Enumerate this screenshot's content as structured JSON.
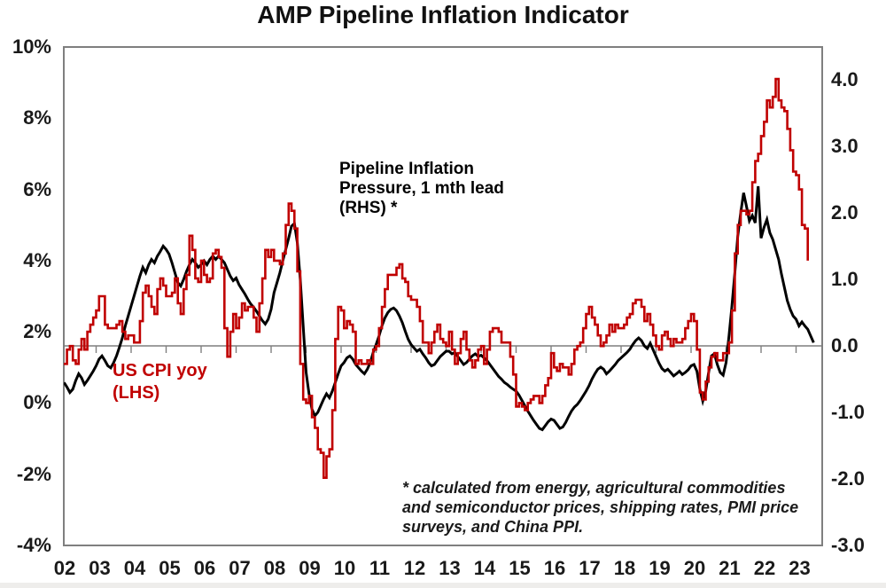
{
  "chart": {
    "title": "AMP Pipeline Inflation Indicator",
    "annotations": {
      "pipeline_label_line1": "Pipeline Inflation",
      "pipeline_label_line2": "Pressure, 1 mth lead",
      "pipeline_label_line3": "(RHS) *",
      "cpi_label_line1": "US CPI yoy",
      "cpi_label_line2": "(LHS)",
      "footnote_line1": "* calculated from energy, agricultural commodities",
      "footnote_line2": "and semiconductor prices, shipping rates, PMI price",
      "footnote_line3": "surveys, and China PPI."
    },
    "colors": {
      "cpi_red": "#c00000",
      "pipeline_black": "#000000",
      "axis_gray": "#7f7f7f"
    }
  },
  "chart_data": {
    "type": "line",
    "title": "AMP Pipeline Inflation Indicator",
    "legend_position": "annotations-inside-plot",
    "grid": false,
    "left_axis": {
      "tick_labels": [
        "10%",
        "8%",
        "6%",
        "4%",
        "2%",
        "0%",
        "-2%",
        "-4%"
      ],
      "tick_values": [
        10,
        8,
        6,
        4,
        2,
        0,
        -2,
        -4
      ],
      "range": [
        -4,
        10
      ],
      "unit": "percent"
    },
    "right_axis": {
      "tick_labels": [
        "4.0",
        "3.0",
        "2.0",
        "1.0",
        "0.0",
        "-1.0",
        "-2.0",
        "-3.0"
      ],
      "tick_values": [
        4,
        3,
        2,
        1,
        0,
        -1,
        -2,
        -3
      ],
      "range": [
        -3,
        4.49
      ],
      "zero_line": true
    },
    "x_axis": {
      "tick_labels": [
        "02",
        "03",
        "04",
        "05",
        "06",
        "07",
        "08",
        "09",
        "10",
        "11",
        "12",
        "13",
        "14",
        "15",
        "16",
        "17",
        "18",
        "19",
        "20",
        "21",
        "22",
        "23"
      ],
      "tick_years": [
        2002,
        2003,
        2004,
        2005,
        2006,
        2007,
        2008,
        2009,
        2010,
        2011,
        2012,
        2013,
        2014,
        2015,
        2016,
        2017,
        2018,
        2019,
        2020,
        2021,
        2022,
        2023
      ],
      "range_years": [
        2001.92,
        2023.75
      ]
    },
    "series": [
      {
        "name": "Pipeline Inflation Pressure, 1 mth lead (RHS)",
        "axis": "right",
        "color": "#000000",
        "line_width": 3,
        "interpolation": "linear",
        "start_year": 2002,
        "start_month": 1,
        "lead_months": 1,
        "values": [
          -0.55,
          -0.62,
          -0.7,
          -0.65,
          -0.52,
          -0.42,
          -0.48,
          -0.58,
          -0.52,
          -0.45,
          -0.38,
          -0.3,
          -0.2,
          -0.15,
          -0.22,
          -0.3,
          -0.33,
          -0.25,
          -0.15,
          -0.02,
          0.12,
          0.3,
          0.45,
          0.6,
          0.75,
          0.9,
          1.05,
          1.18,
          1.1,
          1.22,
          1.3,
          1.25,
          1.35,
          1.42,
          1.5,
          1.45,
          1.38,
          1.25,
          1.1,
          0.95,
          0.9,
          1.0,
          1.12,
          1.22,
          1.3,
          1.25,
          1.18,
          1.22,
          1.28,
          1.22,
          1.3,
          1.35,
          1.3,
          1.35,
          1.3,
          1.25,
          1.15,
          1.05,
          0.98,
          1.02,
          0.92,
          0.85,
          0.78,
          0.7,
          0.63,
          0.58,
          0.52,
          0.45,
          0.38,
          0.33,
          0.4,
          0.55,
          0.8,
          0.95,
          1.1,
          1.28,
          1.45,
          1.62,
          1.8,
          1.84,
          1.55,
          1.0,
          0.3,
          -0.4,
          -0.72,
          -0.95,
          -1.05,
          -1.0,
          -0.9,
          -0.8,
          -0.72,
          -0.78,
          -0.68,
          -0.55,
          -0.42,
          -0.3,
          -0.25,
          -0.18,
          -0.15,
          -0.2,
          -0.28,
          -0.33,
          -0.38,
          -0.42,
          -0.35,
          -0.25,
          -0.1,
          0.02,
          0.15,
          0.3,
          0.42,
          0.5,
          0.55,
          0.57,
          0.53,
          0.45,
          0.35,
          0.22,
          0.1,
          0.02,
          -0.03,
          -0.08,
          -0.05,
          -0.12,
          -0.18,
          -0.25,
          -0.3,
          -0.28,
          -0.22,
          -0.16,
          -0.12,
          -0.08,
          -0.08,
          -0.12,
          -0.1,
          -0.16,
          -0.22,
          -0.28,
          -0.25,
          -0.2,
          -0.15,
          -0.12,
          -0.16,
          -0.14,
          -0.18,
          -0.22,
          -0.28,
          -0.34,
          -0.4,
          -0.46,
          -0.5,
          -0.55,
          -0.58,
          -0.62,
          -0.65,
          -0.68,
          -0.74,
          -0.82,
          -0.9,
          -0.98,
          -1.05,
          -1.12,
          -1.18,
          -1.24,
          -1.26,
          -1.2,
          -1.14,
          -1.1,
          -1.12,
          -1.18,
          -1.24,
          -1.22,
          -1.15,
          -1.06,
          -0.98,
          -0.92,
          -0.88,
          -0.82,
          -0.75,
          -0.68,
          -0.6,
          -0.5,
          -0.42,
          -0.35,
          -0.32,
          -0.35,
          -0.42,
          -0.38,
          -0.33,
          -0.28,
          -0.22,
          -0.18,
          -0.14,
          -0.1,
          -0.05,
          0.02,
          0.08,
          0.12,
          0.08,
          0.0,
          -0.04,
          0.04,
          -0.06,
          -0.16,
          -0.26,
          -0.34,
          -0.38,
          -0.35,
          -0.4,
          -0.45,
          -0.42,
          -0.38,
          -0.43,
          -0.4,
          -0.36,
          -0.3,
          -0.28,
          -0.38,
          -0.65,
          -0.83,
          -0.68,
          -0.4,
          -0.15,
          -0.12,
          -0.28,
          -0.4,
          -0.44,
          -0.25,
          0.15,
          0.6,
          1.1,
          1.65,
          2.0,
          2.3,
          2.1,
          1.88,
          1.96,
          1.85,
          2.4,
          1.62,
          1.78,
          1.9,
          1.7,
          1.6,
          1.45,
          1.3,
          1.08,
          0.88,
          0.68,
          0.55,
          0.45,
          0.4,
          0.3,
          0.36,
          0.3,
          0.25,
          0.15,
          0.05
        ]
      },
      {
        "name": "US CPI yoy (LHS)",
        "axis": "left",
        "color": "#c00000",
        "line_width": 2.6,
        "interpolation": "step-after",
        "start_year": 2002,
        "start_month": 1,
        "lead_months": 0,
        "values": [
          1.1,
          1.1,
          1.5,
          1.6,
          1.2,
          1.1,
          1.5,
          1.8,
          1.5,
          2.0,
          2.2,
          2.4,
          2.6,
          3.0,
          3.0,
          2.2,
          2.1,
          2.1,
          2.1,
          2.2,
          2.3,
          2.0,
          1.8,
          1.9,
          1.9,
          1.7,
          1.7,
          2.3,
          3.1,
          3.3,
          3.0,
          2.7,
          2.5,
          3.2,
          3.5,
          3.3,
          3.0,
          3.0,
          3.1,
          3.5,
          2.8,
          2.5,
          3.2,
          3.6,
          4.7,
          4.3,
          3.5,
          3.4,
          4.0,
          3.6,
          3.4,
          3.5,
          4.2,
          4.3,
          4.1,
          3.8,
          2.1,
          1.3,
          2.0,
          2.5,
          2.1,
          2.4,
          2.8,
          2.6,
          2.7,
          2.7,
          2.4,
          2.0,
          2.8,
          3.5,
          4.3,
          4.1,
          4.3,
          4.0,
          4.0,
          3.9,
          4.2,
          5.0,
          5.6,
          5.4,
          4.9,
          3.7,
          1.1,
          0.1,
          0.0,
          0.2,
          -0.4,
          -0.7,
          -1.3,
          -1.4,
          -2.1,
          -1.5,
          -1.3,
          -0.2,
          1.8,
          2.7,
          2.6,
          2.1,
          2.3,
          2.2,
          2.0,
          1.1,
          1.2,
          1.1,
          1.1,
          1.2,
          1.1,
          1.5,
          1.6,
          2.1,
          2.7,
          3.2,
          3.6,
          3.6,
          3.6,
          3.8,
          3.9,
          3.5,
          3.4,
          3.0,
          2.9,
          2.9,
          2.7,
          2.3,
          1.7,
          1.7,
          1.4,
          1.7,
          2.0,
          2.2,
          1.8,
          1.7,
          1.6,
          2.0,
          1.5,
          1.1,
          1.4,
          1.8,
          2.0,
          1.5,
          1.2,
          1.0,
          1.2,
          1.5,
          1.6,
          1.1,
          1.5,
          2.0,
          2.1,
          2.1,
          2.0,
          1.7,
          1.7,
          1.7,
          1.3,
          0.8,
          -0.1,
          0.0,
          -0.1,
          -0.2,
          0.0,
          0.1,
          0.2,
          0.2,
          0.0,
          0.2,
          0.5,
          0.7,
          1.4,
          1.0,
          0.9,
          1.1,
          1.0,
          1.0,
          0.8,
          1.1,
          1.5,
          1.6,
          1.7,
          2.1,
          2.5,
          2.7,
          2.4,
          2.2,
          1.9,
          1.6,
          1.7,
          1.9,
          2.2,
          2.0,
          2.2,
          2.1,
          2.1,
          2.2,
          2.4,
          2.5,
          2.8,
          2.9,
          2.9,
          2.7,
          2.3,
          2.5,
          2.2,
          1.9,
          1.6,
          1.5,
          1.9,
          2.0,
          1.8,
          1.6,
          1.8,
          1.7,
          1.7,
          1.8,
          2.1,
          2.3,
          2.5,
          2.3,
          1.5,
          0.3,
          0.1,
          0.6,
          1.0,
          1.3,
          1.4,
          1.2,
          1.2,
          1.4,
          1.4,
          1.7,
          2.6,
          4.2,
          5.0,
          5.4,
          5.4,
          5.3,
          5.4,
          6.2,
          6.8,
          7.0,
          7.5,
          7.9,
          8.5,
          8.3,
          8.6,
          9.1,
          8.5,
          8.3,
          8.2,
          7.7,
          7.1,
          6.5,
          6.4,
          6.0,
          5.0,
          4.9,
          4.0
        ]
      }
    ]
  }
}
